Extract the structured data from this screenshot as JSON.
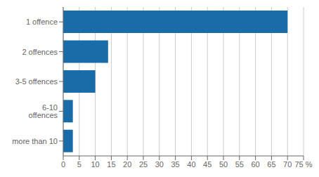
{
  "chart_data": {
    "type": "bar",
    "orientation": "horizontal",
    "categories": [
      "more than 10",
      "6-10 offences",
      "3-5 offences",
      "2 offences",
      "1 offence"
    ],
    "values": [
      3,
      3,
      10,
      14,
      70
    ],
    "color": "#1a6ca8",
    "xlim": [
      0,
      75
    ],
    "xticks": [
      0,
      5,
      10,
      15,
      20,
      25,
      30,
      35,
      40,
      45,
      50,
      55,
      60,
      65,
      70,
      {
        "value": 75,
        "label": "75 %"
      }
    ],
    "grid": true
  }
}
